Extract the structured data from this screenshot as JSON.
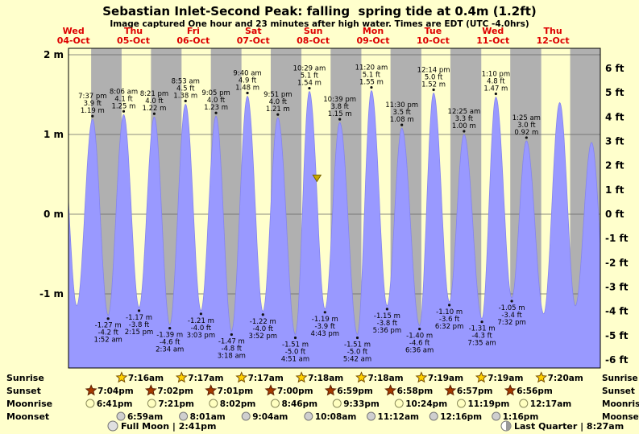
{
  "header": {
    "title": "Sebastian Inlet-Second Peak: falling  spring tide at 0.4m (1.2ft)",
    "subtitle": "Image captured One hour and 23 minutes after high water. Times are EDT (UTC -4.0hrs)"
  },
  "chart_data": {
    "type": "area",
    "title": "Sebastian Inlet-Second Peak: falling spring tide at 0.4m (1.2ft)",
    "x_axis_days": [
      {
        "dow": "Wed",
        "date": "04-Oct"
      },
      {
        "dow": "Thu",
        "date": "05-Oct"
      },
      {
        "dow": "Fri",
        "date": "06-Oct"
      },
      {
        "dow": "Sat",
        "date": "07-Oct"
      },
      {
        "dow": "Sun",
        "date": "08-Oct"
      },
      {
        "dow": "Mon",
        "date": "09-Oct"
      },
      {
        "dow": "Tue",
        "date": "10-Oct"
      },
      {
        "dow": "Wed",
        "date": "11-Oct"
      },
      {
        "dow": "Thu",
        "date": "12-Oct"
      }
    ],
    "y_axis_left_m": [
      {
        "v": 2,
        "label": "2 m"
      },
      {
        "v": 1,
        "label": "1 m"
      },
      {
        "v": 0,
        "label": "0 m"
      },
      {
        "v": -1,
        "label": "-1 m"
      }
    ],
    "y_axis_right_ft": [
      {
        "v": 6,
        "label": "6 ft"
      },
      {
        "v": 5,
        "label": "5 ft"
      },
      {
        "v": 4,
        "label": "4 ft"
      },
      {
        "v": 3,
        "label": "3 ft"
      },
      {
        "v": 2,
        "label": "2 ft"
      },
      {
        "v": 1,
        "label": "1 ft"
      },
      {
        "v": 0,
        "label": "0 ft"
      },
      {
        "v": -1,
        "label": "-1 ft"
      },
      {
        "v": -2,
        "label": "-2 ft"
      },
      {
        "v": -3,
        "label": "-3 ft"
      },
      {
        "v": -4,
        "label": "-4 ft"
      },
      {
        "v": -5,
        "label": "-5 ft"
      },
      {
        "v": -6,
        "label": "-6 ft"
      }
    ],
    "high_tides": [
      {
        "t": 19.62,
        "time": "7:37 pm",
        "ft": "3.9 ft",
        "m": "1.19 m"
      },
      {
        "t": 32.1,
        "time": "8:06 am",
        "ft": "4.1 ft",
        "m": "1.25 m"
      },
      {
        "t": 44.35,
        "time": "8:21 pm",
        "ft": "4.0 ft",
        "m": "1.22 m"
      },
      {
        "t": 56.88,
        "time": "8:53 am",
        "ft": "4.5 ft",
        "m": "1.38 m"
      },
      {
        "t": 69.08,
        "time": "9:05 pm",
        "ft": "4.0 ft",
        "m": "1.23 m"
      },
      {
        "t": 81.67,
        "time": "9:40 am",
        "ft": "4.9 ft",
        "m": "1.48 m"
      },
      {
        "t": 93.85,
        "time": "9:51 pm",
        "ft": "4.0 ft",
        "m": "1.21 m"
      },
      {
        "t": 106.48,
        "time": "10:29 am",
        "ft": "5.1 ft",
        "m": "1.54 m"
      },
      {
        "t": 118.65,
        "time": "10:39 pm",
        "ft": "3.8 ft",
        "m": "1.15 m"
      },
      {
        "t": 131.33,
        "time": "11:20 am",
        "ft": "5.1 ft",
        "m": "1.55 m"
      },
      {
        "t": 143.5,
        "time": "11:30 pm",
        "ft": "3.5 ft",
        "m": "1.08 m"
      },
      {
        "t": 156.23,
        "time": "12:14 pm",
        "ft": "5.0 ft",
        "m": "1.52 m"
      },
      {
        "t": 168.42,
        "time": "12:25 am",
        "ft": "3.3 ft",
        "m": "1.00 m"
      },
      {
        "t": 181.17,
        "time": "1:10 pm",
        "ft": "4.8 ft",
        "m": "1.47 m"
      },
      {
        "t": 193.42,
        "time": "1:25 am",
        "ft": "3.0 ft",
        "m": "0.92 m"
      }
    ],
    "low_tides": [
      {
        "t": 25.87,
        "time": "1:52 am",
        "ft": "-4.2 ft",
        "m": "-1.27 m"
      },
      {
        "t": 38.25,
        "time": "2:15 pm",
        "ft": "-3.8 ft",
        "m": "-1.17 m"
      },
      {
        "t": 50.57,
        "time": "2:34 am",
        "ft": "-4.6 ft",
        "m": "-1.39 m"
      },
      {
        "t": 63.05,
        "time": "3:03 pm",
        "ft": "-4.0 ft",
        "m": "-1.21 m"
      },
      {
        "t": 75.3,
        "time": "3:18 am",
        "ft": "-4.8 ft",
        "m": "-1.47 m"
      },
      {
        "t": 87.87,
        "time": "3:52 pm",
        "ft": "-4.0 ft",
        "m": "-1.22 m"
      },
      {
        "t": 100.85,
        "time": "4:51 am",
        "ft": "-5.0 ft",
        "m": "-1.51 m"
      },
      {
        "t": 112.72,
        "time": "4:43 pm",
        "ft": "-3.9 ft",
        "m": "-1.19 m"
      },
      {
        "t": 125.7,
        "time": "5:42 am",
        "ft": "-5.0 ft",
        "m": "-1.51 m"
      },
      {
        "t": 137.6,
        "time": "5:36 pm",
        "ft": "-3.8 ft",
        "m": "-1.15 m"
      },
      {
        "t": 150.6,
        "time": "6:36 am",
        "ft": "-4.6 ft",
        "m": "-1.40 m"
      },
      {
        "t": 162.53,
        "time": "6:32 pm",
        "ft": "-3.6 ft",
        "m": "-1.10 m"
      },
      {
        "t": 175.58,
        "time": "7:35 am",
        "ft": "-4.3 ft",
        "m": "-1.31 m"
      },
      {
        "t": 187.53,
        "time": "7:32 pm",
        "ft": "-3.4 ft",
        "m": "-1.05 m"
      }
    ],
    "edge_extremes_estimated": [
      [
        7.33,
        1.1
      ],
      [
        13.33,
        -1.15
      ],
      [
        200.33,
        -1.25
      ],
      [
        206.75,
        1.4
      ],
      [
        213.0,
        -1.15
      ],
      [
        219.5,
        0.9
      ],
      [
        225.8,
        -1.3
      ]
    ],
    "night_bands_t": [
      [
        19.07,
        31.27
      ],
      [
        43.03,
        55.28
      ],
      [
        67.02,
        79.28
      ],
      [
        91.0,
        103.3
      ],
      [
        114.98,
        127.3
      ],
      [
        138.97,
        151.32
      ],
      [
        162.95,
        175.32
      ],
      [
        186.93,
        199.33
      ],
      [
        210.92,
        223.0
      ]
    ],
    "capture_marker": {
      "height_m": 0.4,
      "state": "falling"
    },
    "colors": {
      "day_bg": "#ffffcc",
      "night_bg": "#b0b0b0",
      "water": "#9999ff",
      "day_label_red": "#dd0000",
      "frame": "#000000",
      "sunrise_star": "#ffd000",
      "sunset_star": "#a63a00",
      "moonrise_circle": "#ffffc0",
      "moonset_circle": "#cfcfcf",
      "marker_fill": "#c8a800",
      "marker_stroke": "#7a6400"
    }
  },
  "astro": {
    "rows": [
      {
        "label": "Sunrise",
        "icon": "sunrise-star-icon",
        "items": [
          {
            "t": 31.27,
            "time": "7:16am"
          },
          {
            "t": 55.28,
            "time": "7:17am"
          },
          {
            "t": 79.28,
            "time": "7:17am"
          },
          {
            "t": 103.3,
            "time": "7:18am"
          },
          {
            "t": 127.3,
            "time": "7:18am"
          },
          {
            "t": 151.32,
            "time": "7:19am"
          },
          {
            "t": 175.32,
            "time": "7:19am"
          },
          {
            "t": 199.33,
            "time": "7:20am"
          }
        ]
      },
      {
        "label": "Sunset",
        "icon": "sunset-star-icon",
        "items": [
          {
            "t": 19.07,
            "time": "7:04pm"
          },
          {
            "t": 43.03,
            "time": "7:02pm"
          },
          {
            "t": 67.02,
            "time": "7:01pm"
          },
          {
            "t": 91.0,
            "time": "7:00pm"
          },
          {
            "t": 114.98,
            "time": "6:59pm"
          },
          {
            "t": 138.97,
            "time": "6:58pm"
          },
          {
            "t": 162.95,
            "time": "6:57pm"
          },
          {
            "t": 186.93,
            "time": "6:56pm"
          }
        ]
      },
      {
        "label": "Moonrise",
        "icon": "moonrise-circle-icon",
        "items": [
          {
            "t": 18.68,
            "time": "6:41pm"
          },
          {
            "t": 43.35,
            "time": "7:21pm"
          },
          {
            "t": 68.03,
            "time": "8:02pm"
          },
          {
            "t": 92.77,
            "time": "8:46pm"
          },
          {
            "t": 117.55,
            "time": "9:33pm"
          },
          {
            "t": 142.4,
            "time": "10:24pm"
          },
          {
            "t": 167.32,
            "time": "11:19pm"
          },
          {
            "t": 192.28,
            "time": "12:17am"
          }
        ]
      },
      {
        "label": "Moonset",
        "icon": "moonset-circle-icon",
        "items": [
          {
            "t": 30.98,
            "time": "6:59am"
          },
          {
            "t": 56.02,
            "time": "8:01am"
          },
          {
            "t": 81.07,
            "time": "9:04am"
          },
          {
            "t": 106.13,
            "time": "10:08am"
          },
          {
            "t": 131.2,
            "time": "11:12am"
          },
          {
            "t": 156.27,
            "time": "12:16pm"
          },
          {
            "t": 181.27,
            "time": "1:16pm"
          }
        ]
      }
    ],
    "phases": [
      {
        "label": "Full Moon | 2:41pm",
        "icon": "full-moon-icon"
      },
      {
        "label": "Last Quarter | 8:27am",
        "icon": "last-quarter-icon"
      }
    ]
  }
}
